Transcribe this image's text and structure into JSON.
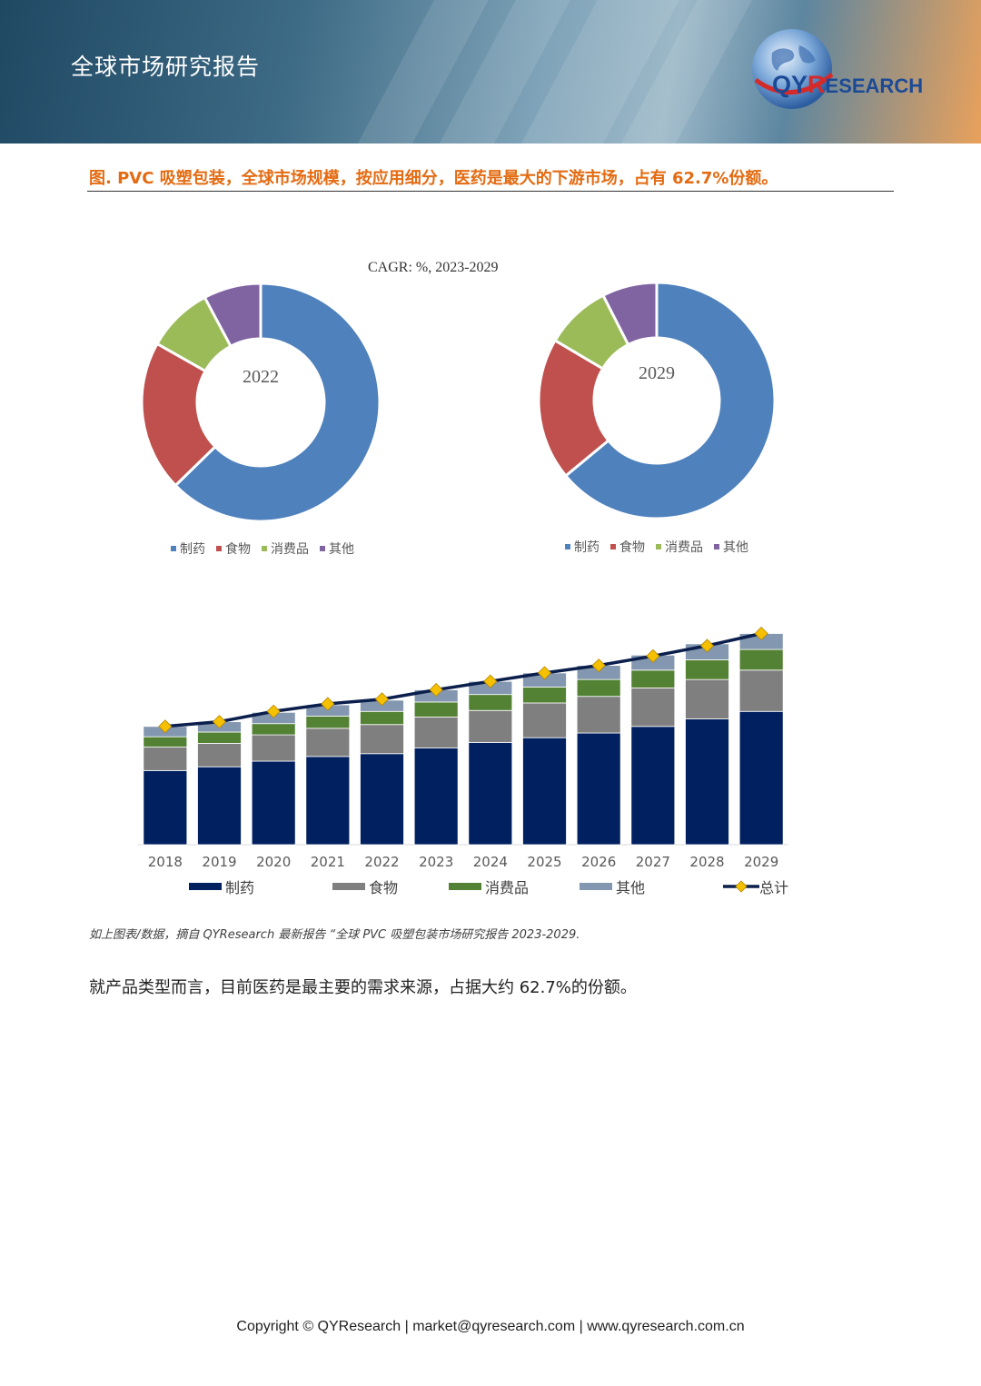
{
  "header": {
    "title": "全球市场研究报告",
    "logo_q": "QY",
    "logo_r": "R",
    "logo_rest": "ESEARCH"
  },
  "figure": {
    "title": "图.  PVC 吸塑包装，全球市场规模，按应用细分，医药是最大的下游市场，占有 62.7%份额。",
    "cagr_label": "CAGR:    %, 2023-2029"
  },
  "colors": {
    "pharma_donut": "#4f81bd",
    "food_donut": "#c0504d",
    "consumer_donut": "#9bbb59",
    "other_donut": "#8064a2",
    "pharma_bar": "#002060",
    "food_bar": "#7f7f7f",
    "consumer_bar": "#548235",
    "other_bar": "#8497b0",
    "total_line": "#0b1f4d",
    "total_marker": "#f5c000",
    "title_orange": "#e36b12"
  },
  "chart_data": [
    {
      "type": "pie",
      "title": "2022",
      "categories": [
        "制药",
        "食物",
        "消费品",
        "其他"
      ],
      "values": [
        62.7,
        20.5,
        9.0,
        7.8
      ]
    },
    {
      "type": "pie",
      "title": "2029",
      "categories": [
        "制药",
        "食物",
        "消费品",
        "其他"
      ],
      "values": [
        64.0,
        19.5,
        9.0,
        7.5
      ]
    },
    {
      "type": "bar",
      "stacked": true,
      "categories": [
        "2018",
        "2019",
        "2020",
        "2021",
        "2022",
        "2023",
        "2024",
        "2025",
        "2026",
        "2027",
        "2028",
        "2029"
      ],
      "series": [
        {
          "name": "制药",
          "values": [
            79,
            83,
            89,
            94,
            97,
            103,
            109,
            114,
            119,
            126,
            134,
            142
          ]
        },
        {
          "name": "食物",
          "values": [
            25,
            25,
            28,
            30,
            31,
            33,
            34,
            37,
            39,
            41,
            42,
            44
          ]
        },
        {
          "name": "消费品",
          "values": [
            11,
            12,
            12,
            13,
            14,
            16,
            17,
            17,
            18,
            19,
            21,
            22
          ]
        },
        {
          "name": "其他",
          "values": [
            11,
            11,
            12,
            12,
            12,
            13,
            14,
            15,
            15,
            16,
            17,
            17
          ]
        }
      ],
      "line": {
        "name": "总计",
        "values": [
          126,
          131,
          142,
          150,
          155,
          165,
          174,
          183,
          191,
          201,
          212,
          225
        ]
      },
      "ylim": [
        0,
        240
      ]
    }
  ],
  "source_note": "如上图表/数据，摘自 QYResearch 最新报告 “全球 PVC 吸塑包装市场研究报告 2023-2029.",
  "body_text": "就产品类型而言，目前医药是最主要的需求来源，占据大约 62.7%的份额。",
  "footer": "Copyright © QYResearch | market@qyresearch.com | www.qyresearch.com.cn"
}
